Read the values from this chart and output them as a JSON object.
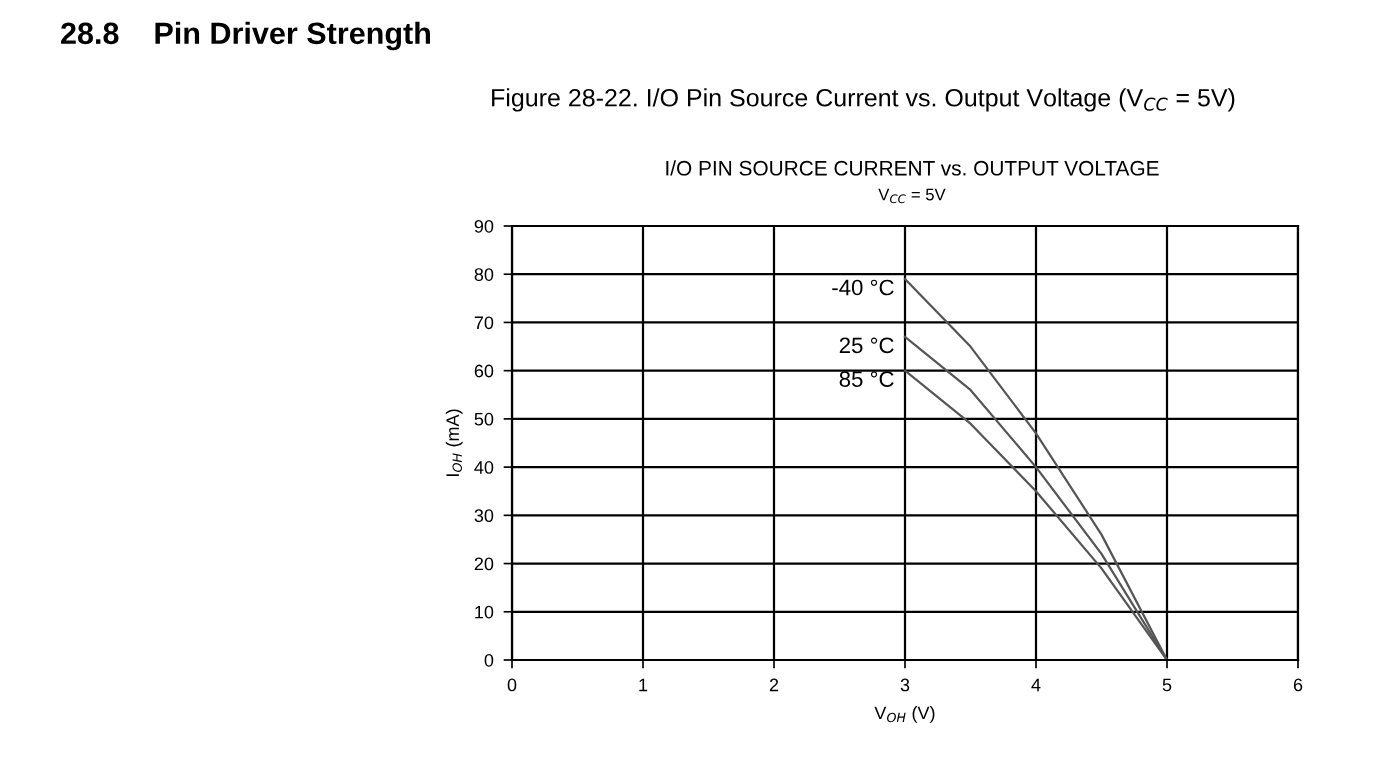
{
  "chart_data": {
    "type": "line",
    "title": "I/O PIN SOURCE CURRENT vs. OUTPUT VOLTAGE",
    "subtitle": "V$_{CC}$ = 5V",
    "xlabel": "V$_{OH}$ (V)",
    "ylabel": "I$_{OH}$ (mA)",
    "annotations": [
      "28.8    Pin Driver Strength",
      "Figure 28-22. I/O Pin Source Current vs. Output Voltage (V$_{CC}$ = 5V)"
    ],
    "x": [
      3,
      3.5,
      4,
      4.5,
      5
    ],
    "series": [
      {
        "name": "-40 °C",
        "color": "#555555",
        "values": [
          79,
          65,
          47,
          26,
          0
        ]
      },
      {
        "name": "25 °C",
        "color": "#555555",
        "values": [
          67,
          56,
          40,
          22,
          0
        ]
      },
      {
        "name": "85 °C",
        "color": "#555555",
        "values": [
          60,
          49,
          35,
          19,
          0
        ]
      }
    ],
    "xlim": [
      0,
      6
    ],
    "ylim": [
      0,
      90
    ],
    "xticks": [
      0,
      1,
      2,
      3,
      4,
      5,
      6
    ],
    "yticks": [
      0,
      10,
      20,
      30,
      40,
      50,
      60,
      70,
      80,
      90
    ],
    "grid": true,
    "legend": false,
    "marker": "none",
    "line_style": "solid"
  }
}
